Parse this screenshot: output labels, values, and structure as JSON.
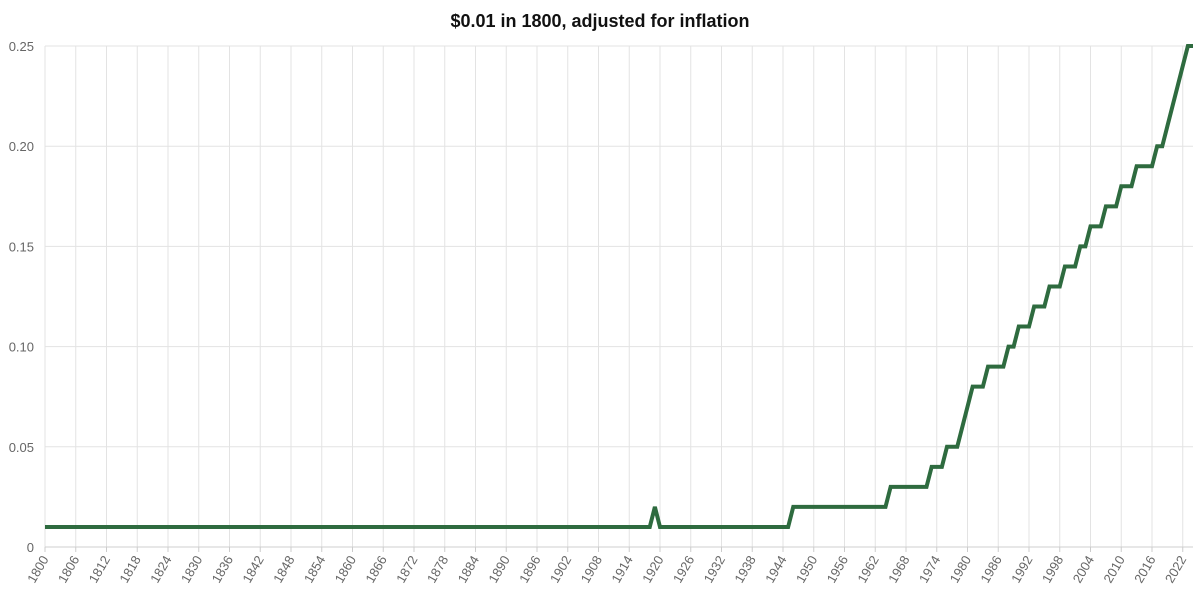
{
  "chart_data": {
    "type": "line",
    "title": "$0.01 in 1800, adjusted for inflation",
    "xlabel": "",
    "ylabel": "",
    "xlim": [
      1800,
      2024
    ],
    "ylim": [
      0,
      0.25
    ],
    "grid": true,
    "line_color": "#2e6b3f",
    "grid_color": "#e3e3e3",
    "x_ticks": [
      "1800",
      "1806",
      "1812",
      "1818",
      "1824",
      "1830",
      "1836",
      "1842",
      "1848",
      "1854",
      "1860",
      "1866",
      "1872",
      "1878",
      "1884",
      "1890",
      "1896",
      "1902",
      "1908",
      "1914",
      "1920",
      "1926",
      "1932",
      "1938",
      "1944",
      "1950",
      "1956",
      "1962",
      "1968",
      "1974",
      "1980",
      "1986",
      "1992",
      "1998",
      "2004",
      "2010",
      "2016",
      "2022"
    ],
    "y_ticks": [
      "0",
      "0.05",
      "0.10",
      "0.15",
      "0.20",
      "0.25"
    ],
    "y_tick_values": [
      0,
      0.05,
      0.1,
      0.15,
      0.2,
      0.25
    ],
    "series": [
      {
        "x": [
          1800,
          1918,
          1919,
          1920,
          1945,
          1946,
          1964,
          1965,
          1972,
          1973,
          1974,
          1975,
          1976,
          1977,
          1978,
          1979,
          1980,
          1981,
          1983,
          1984,
          1987,
          1988,
          1989,
          1990,
          1992,
          1993,
          1994,
          1995,
          1996,
          1997,
          1998,
          1999,
          2000,
          2001,
          2002,
          2003,
          2004,
          2005,
          2006,
          2007,
          2008,
          2009,
          2010,
          2011,
          2012,
          2013,
          2014,
          2015,
          2016,
          2017,
          2018,
          2019,
          2020,
          2021,
          2022,
          2023,
          2024
        ],
        "y": [
          0.01,
          0.01,
          0.02,
          0.01,
          0.01,
          0.02,
          0.02,
          0.03,
          0.03,
          0.04,
          0.04,
          0.04,
          0.05,
          0.05,
          0.05,
          0.06,
          0.07,
          0.08,
          0.08,
          0.09,
          0.09,
          0.1,
          0.1,
          0.11,
          0.11,
          0.12,
          0.12,
          0.12,
          0.13,
          0.13,
          0.13,
          0.14,
          0.14,
          0.14,
          0.15,
          0.15,
          0.16,
          0.16,
          0.16,
          0.17,
          0.17,
          0.17,
          0.18,
          0.18,
          0.18,
          0.19,
          0.19,
          0.19,
          0.19,
          0.2,
          0.2,
          0.21,
          0.22,
          0.23,
          0.24,
          0.25,
          0.25
        ]
      }
    ]
  }
}
